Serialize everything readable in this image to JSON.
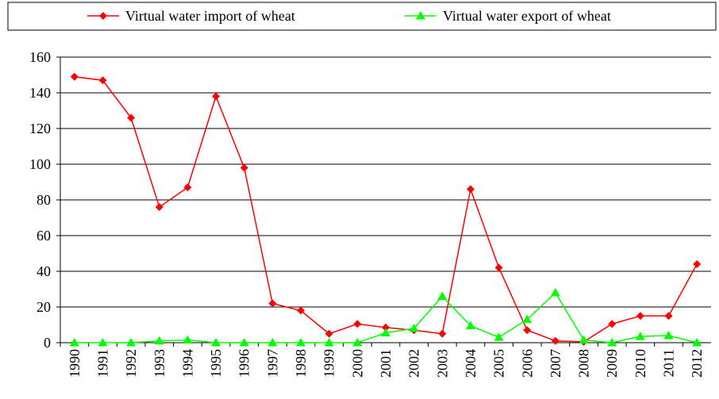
{
  "chart_data": {
    "type": "line",
    "categories": [
      "1990",
      "1991",
      "1992",
      "1993",
      "1994",
      "1995",
      "1996",
      "1997",
      "1998",
      "1999",
      "2000",
      "2001",
      "2002",
      "2003",
      "2004",
      "2005",
      "2006",
      "2007",
      "2008",
      "2009",
      "2010",
      "2011",
      "2012"
    ],
    "series": [
      {
        "name": "Virtual water import of wheat",
        "color": "#ff0000",
        "marker": "diamond",
        "values": [
          149,
          147,
          126,
          76,
          87,
          138,
          98,
          22,
          18,
          5,
          10.5,
          8.5,
          7,
          5,
          86,
          42,
          7,
          1,
          0.5,
          10.5,
          15,
          15,
          44
        ]
      },
      {
        "name": "Virtual water export of wheat",
        "color": "#00ff00",
        "marker": "triangle",
        "values": [
          0,
          0,
          0,
          1,
          1.5,
          0,
          0,
          0,
          0,
          0,
          0,
          5.5,
          8,
          26,
          9.5,
          3,
          13,
          28,
          1.5,
          0,
          3.5,
          4,
          0
        ]
      }
    ],
    "ylim": [
      0,
      160
    ],
    "yticks": [
      0,
      20,
      40,
      60,
      80,
      100,
      120,
      140,
      160
    ],
    "grid": true,
    "legend": "top"
  }
}
